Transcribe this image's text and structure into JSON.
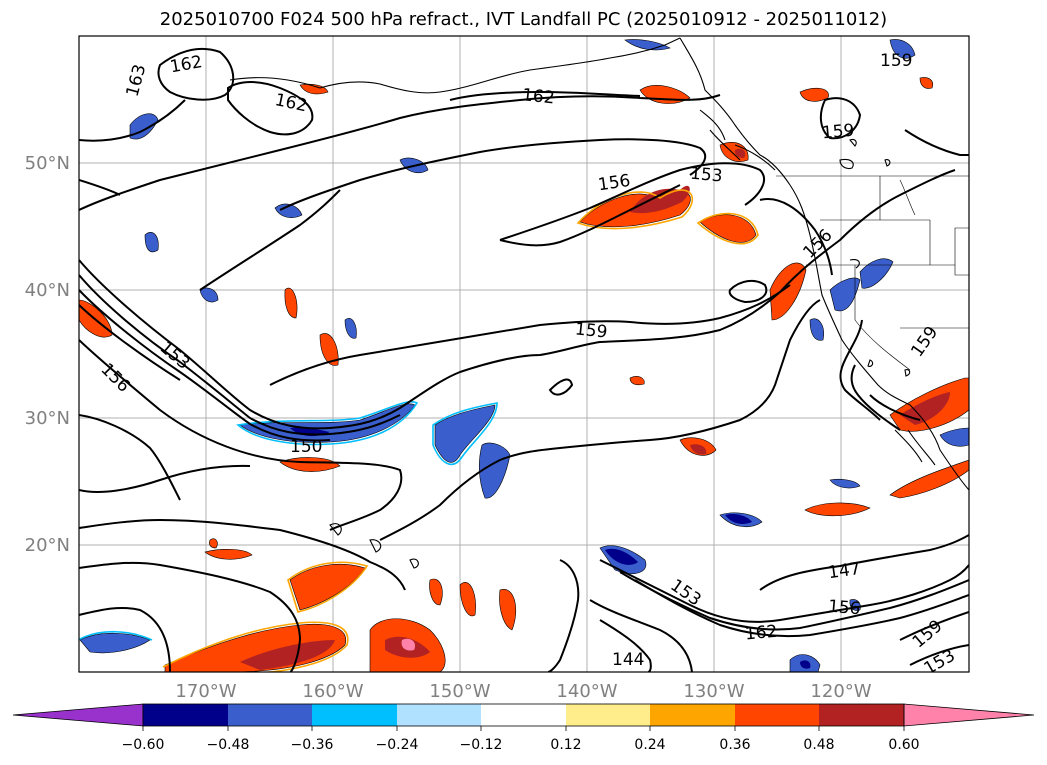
{
  "title": "2025010700 F024 500 hPa refract., IVT Landfall PC (2025010912 - 2025011012)",
  "lat_labels": [
    "50°N",
    "40°N",
    "30°N",
    "20°N"
  ],
  "lon_labels": [
    "170°W",
    "160°W",
    "150°W",
    "140°W",
    "130°W",
    "120°W"
  ],
  "contour_labels": [
    "163",
    "162",
    "162",
    "162",
    "159",
    "159",
    "156",
    "153",
    "156",
    "159",
    "153",
    "156",
    "150",
    "159",
    "147",
    "153",
    "156",
    "162",
    "159",
    "153",
    "144"
  ],
  "colorbar": {
    "ticks": [
      "−0.60",
      "−0.48",
      "−0.36",
      "−0.24",
      "−0.12",
      "0.12",
      "0.24",
      "0.36",
      "0.48",
      "0.60"
    ],
    "colors": [
      "#9932cc",
      "#00008b",
      "#3a5fcd",
      "#00bfff",
      "#b0e2ff",
      "#ffffff",
      "#ffec8b",
      "#ffa500",
      "#ff4500",
      "#b22222",
      "#ff82ab"
    ]
  }
}
